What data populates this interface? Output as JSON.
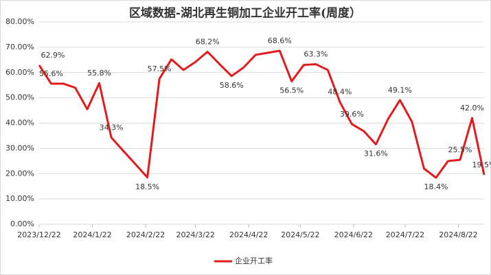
{
  "chart_data": {
    "type": "line",
    "title": "区域数据-湖北再生铜加工企业开工率(周度）",
    "x": [
      "2023/12/22",
      "2023/12/29",
      "2024/1/5",
      "2024/1/12",
      "2024/1/19",
      "2024/1/26",
      "2024/2/2",
      "2024/2/9",
      "2024/2/16",
      "2024/2/23",
      "2024/3/1",
      "2024/3/8",
      "2024/3/15",
      "2024/3/22",
      "2024/3/29",
      "2024/4/5",
      "2024/4/12",
      "2024/4/19",
      "2024/4/26",
      "2024/5/3",
      "2024/5/10",
      "2024/5/17",
      "2024/5/24",
      "2024/5/31",
      "2024/6/7",
      "2024/6/14",
      "2024/6/21",
      "2024/6/28",
      "2024/7/5",
      "2024/7/12",
      "2024/7/19",
      "2024/7/26",
      "2024/8/2",
      "2024/8/9",
      "2024/8/16",
      "2024/8/23",
      "2024/8/30",
      "2024/9/6"
    ],
    "series": [
      {
        "name": "企业开工率",
        "color": "#e31a1c",
        "values": [
          62.9,
          55.6,
          55.6,
          54.0,
          45.5,
          55.8,
          34.3,
          29.0,
          23.8,
          18.5,
          57.5,
          65.2,
          61.0,
          64.2,
          68.2,
          63.3,
          58.6,
          62.0,
          67.0,
          67.8,
          68.6,
          56.5,
          63.0,
          63.3,
          61.0,
          48.4,
          39.6,
          36.8,
          31.6,
          41.5,
          49.1,
          40.5,
          22.0,
          18.4,
          25.0,
          25.5,
          42.0,
          19.5
        ],
        "value_labels": [
          "62.9%",
          "55.6%",
          null,
          null,
          null,
          "55.8%",
          "34.3%",
          null,
          null,
          "18.5%",
          "57.5%",
          null,
          null,
          null,
          "68.2%",
          null,
          "58.6%",
          null,
          null,
          null,
          "68.6%",
          "56.5%",
          null,
          "63.3%",
          null,
          "48.4%",
          "39.6%",
          null,
          "31.6%",
          null,
          "49.1%",
          null,
          null,
          "18.4%",
          null,
          "25.5%",
          "42.0%",
          "19.5%"
        ]
      }
    ],
    "xlim": [
      "2023/12/22",
      "2024/9/6"
    ],
    "xticks": [
      "2023/12/22",
      "2024/1/22",
      "2024/2/22",
      "2024/3/22",
      "2024/4/22",
      "2024/5/22",
      "2024/6/22",
      "2024/7/22",
      "2024/8/22"
    ],
    "ylim": [
      0,
      80
    ],
    "yticks": [
      {
        "value": 0,
        "label": "0.00%"
      },
      {
        "value": 10,
        "label": "10.00%"
      },
      {
        "value": 20,
        "label": "20.00%"
      },
      {
        "value": 30,
        "label": "30.00%"
      },
      {
        "value": 40,
        "label": "40.00%"
      },
      {
        "value": 50,
        "label": "50.00%"
      },
      {
        "value": 60,
        "label": "60.00%"
      },
      {
        "value": 70,
        "label": "70.00%"
      },
      {
        "value": 80,
        "label": "80.00%"
      }
    ],
    "grid": true,
    "legend": "bottom"
  }
}
